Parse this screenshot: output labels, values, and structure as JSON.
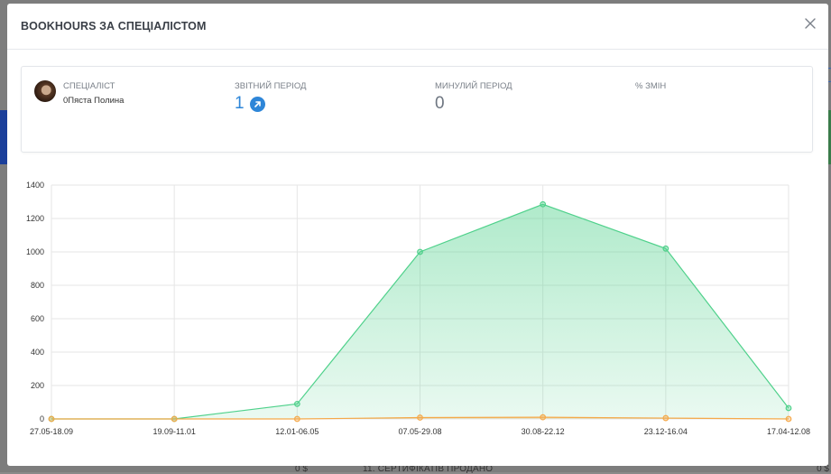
{
  "modal": {
    "title": "BOOKHOURS ЗА СПЕЦІАЛІСТОМ",
    "close_icon": "close-icon"
  },
  "stats": {
    "specialist_label": "СПЕЦІАЛІСТ",
    "specialist_name": "0Пяста Полина",
    "current_label": "ЗВІТНИЙ ПЕРІОД",
    "current_value": "1",
    "previous_label": "МИНУЛИЙ ПЕРІОД",
    "previous_value": "0",
    "change_label": "% ЗМІН",
    "change_value": "",
    "accent_color": "#2e86d8"
  },
  "background": {
    "bottom_text": "11. СЕРТИФІКАТІВ ПРОДАНО",
    "bottom_num_left": "0 $",
    "bottom_num_right": "0 $"
  },
  "chart_data": {
    "type": "area",
    "categories": [
      "27.05-18.09",
      "19.09-11.01",
      "12.01-06.05",
      "07.05-29.08",
      "30.08-22.12",
      "23.12-16.04",
      "17.04-12.08"
    ],
    "series": [
      {
        "values": [
          0,
          0,
          90,
          1000,
          1285,
          1020,
          65
        ],
        "color": "#4fd18b"
      },
      {
        "values": [
          0,
          0,
          0,
          8,
          10,
          5,
          0
        ],
        "color": "#f5a94a"
      }
    ],
    "ylim": [
      0,
      1400
    ],
    "yticks": [
      0,
      200,
      400,
      600,
      800,
      1000,
      1200,
      1400
    ],
    "grid": true
  }
}
